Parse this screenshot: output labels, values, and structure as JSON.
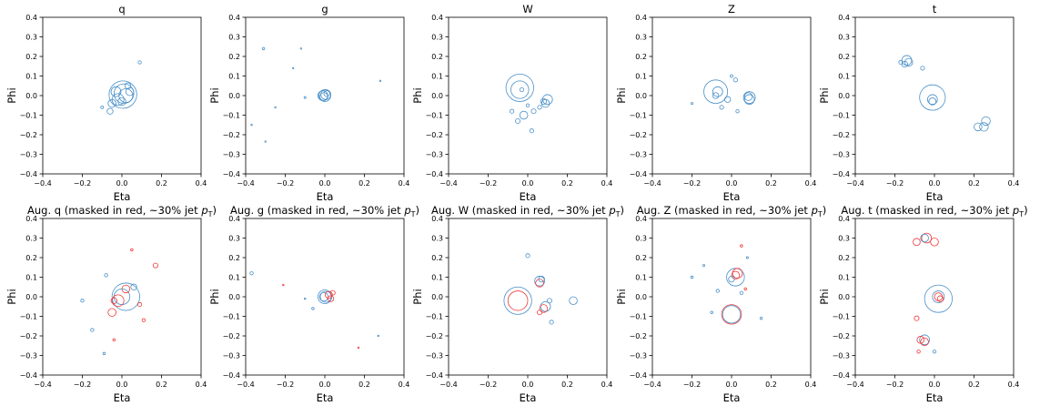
{
  "style": {
    "blue": "#4a90c8",
    "red": "#f03a3a"
  },
  "chart_data": [
    {
      "type": "scatter",
      "title": "q",
      "xlabel": "Eta",
      "ylabel": "Phi",
      "xlim": [
        -0.4,
        0.4
      ],
      "ylim": [
        -0.4,
        0.4
      ],
      "xticks": [
        "−0.4",
        "−0.2",
        "0.0",
        "0.2",
        "0.4"
      ],
      "yticks": [
        "0.4",
        "0.3",
        "0.2",
        "0.1",
        "0.0",
        "−0.1",
        "−0.2",
        "−0.3",
        "−0.4"
      ],
      "circles": [
        [
          0.005,
          0.005,
          0.07,
          "b"
        ],
        [
          0.01,
          0.01,
          0.05,
          "b"
        ],
        [
          0.02,
          0.0,
          0.035,
          "b"
        ],
        [
          -0.03,
          0.02,
          0.025,
          "b"
        ],
        [
          0.04,
          0.02,
          0.02,
          "b"
        ],
        [
          -0.05,
          -0.04,
          0.02,
          "b"
        ],
        [
          0.0,
          -0.03,
          0.02,
          "b"
        ],
        [
          -0.06,
          -0.08,
          0.015,
          "b"
        ],
        [
          0.09,
          0.17,
          0.008,
          "b"
        ],
        [
          -0.1,
          -0.06,
          0.007,
          "b"
        ],
        [
          0.03,
          0.05,
          0.015,
          "b"
        ],
        [
          -0.02,
          -0.02,
          0.03,
          "b"
        ]
      ]
    },
    {
      "type": "scatter",
      "title": "g",
      "xlabel": "Eta",
      "ylabel": "Phi",
      "xlim": [
        -0.4,
        0.4
      ],
      "ylim": [
        -0.4,
        0.4
      ],
      "xticks": [
        "−0.4",
        "−0.2",
        "0.0",
        "0.2",
        "0.4"
      ],
      "yticks": [
        "0.4",
        "0.3",
        "0.2",
        "0.1",
        "0.0",
        "−0.1",
        "−0.2",
        "−0.3",
        "−0.4"
      ],
      "circles": [
        [
          0.0,
          0.0,
          0.03,
          "b"
        ],
        [
          0.005,
          0.005,
          0.025,
          "b"
        ],
        [
          -0.005,
          -0.005,
          0.02,
          "b"
        ],
        [
          0.01,
          0.01,
          0.015,
          "b"
        ],
        [
          -0.01,
          0.0,
          0.025,
          "b"
        ],
        [
          -0.31,
          0.24,
          0.006,
          "b"
        ],
        [
          -0.3,
          -0.235,
          0.003,
          "b"
        ],
        [
          -0.12,
          0.24,
          0.002,
          "b"
        ],
        [
          -0.16,
          0.14,
          0.002,
          "b"
        ],
        [
          0.28,
          0.075,
          0.002,
          "b"
        ],
        [
          -0.37,
          -0.15,
          0.003,
          "b"
        ],
        [
          -0.25,
          -0.06,
          0.003,
          "b"
        ],
        [
          -0.1,
          -0.01,
          0.005,
          "b"
        ]
      ]
    },
    {
      "type": "scatter",
      "title": "W",
      "xlabel": "Eta",
      "ylabel": "Phi",
      "xlim": [
        -0.4,
        0.4
      ],
      "ylim": [
        -0.4,
        0.4
      ],
      "xticks": [
        "−0.4",
        "−0.2",
        "0.0",
        "0.2",
        "0.4"
      ],
      "yticks": [
        "0.4",
        "0.3",
        "0.2",
        "0.1",
        "0.0",
        "−0.1",
        "−0.2",
        "−0.3",
        "−0.4"
      ],
      "circles": [
        [
          -0.04,
          0.04,
          0.07,
          "b"
        ],
        [
          -0.04,
          0.03,
          0.045,
          "b"
        ],
        [
          0.1,
          -0.02,
          0.025,
          "b"
        ],
        [
          0.09,
          -0.04,
          0.02,
          "b"
        ],
        [
          0.08,
          -0.03,
          0.015,
          "b"
        ],
        [
          -0.02,
          -0.1,
          0.02,
          "b"
        ],
        [
          -0.05,
          -0.13,
          0.012,
          "b"
        ],
        [
          0.03,
          -0.08,
          0.012,
          "b"
        ],
        [
          0.02,
          -0.18,
          0.01,
          "b"
        ],
        [
          -0.08,
          -0.08,
          0.01,
          "b"
        ],
        [
          0.06,
          -0.06,
          0.01,
          "b"
        ],
        [
          -0.03,
          0.03,
          0.01,
          "b"
        ],
        [
          0.0,
          -0.05,
          0.008,
          "b"
        ]
      ]
    },
    {
      "type": "scatter",
      "title": "Z",
      "xlabel": "Eta",
      "ylabel": "Phi",
      "xlim": [
        -0.4,
        0.4
      ],
      "ylim": [
        -0.4,
        0.4
      ],
      "xticks": [
        "−0.4",
        "−0.2",
        "0.0",
        "0.2",
        "0.4"
      ],
      "yticks": [
        "0.4",
        "0.3",
        "0.2",
        "0.1",
        "0.0",
        "−0.1",
        "−0.2",
        "−0.3",
        "−0.4"
      ],
      "circles": [
        [
          -0.08,
          0.02,
          0.06,
          "b"
        ],
        [
          0.09,
          -0.01,
          0.03,
          "b"
        ],
        [
          0.09,
          -0.02,
          0.025,
          "b"
        ],
        [
          0.085,
          -0.005,
          0.02,
          "b"
        ],
        [
          -0.07,
          0.02,
          0.025,
          "b"
        ],
        [
          -0.08,
          0.0,
          0.015,
          "b"
        ],
        [
          -0.02,
          -0.02,
          0.015,
          "b"
        ],
        [
          0.02,
          0.08,
          0.01,
          "b"
        ],
        [
          -0.05,
          -0.06,
          0.01,
          "b"
        ],
        [
          0.03,
          -0.08,
          0.008,
          "b"
        ],
        [
          -0.2,
          -0.04,
          0.005,
          "b"
        ],
        [
          0.0,
          0.1,
          0.007,
          "b"
        ]
      ]
    },
    {
      "type": "scatter",
      "title": "t",
      "xlabel": "Eta",
      "ylabel": "Phi",
      "xlim": [
        -0.4,
        0.4
      ],
      "ylim": [
        -0.4,
        0.4
      ],
      "xticks": [
        "−0.4",
        "−0.2",
        "0.0",
        "0.2",
        "0.4"
      ],
      "yticks": [
        "0.4",
        "0.3",
        "0.2",
        "0.1",
        "0.0",
        "−0.1",
        "−0.2",
        "−0.3",
        "−0.4"
      ],
      "circles": [
        [
          -0.01,
          -0.01,
          0.065,
          "b"
        ],
        [
          -0.01,
          -0.02,
          0.025,
          "b"
        ],
        [
          -0.01,
          -0.03,
          0.018,
          "b"
        ],
        [
          -0.14,
          0.18,
          0.025,
          "b"
        ],
        [
          -0.13,
          0.17,
          0.02,
          "b"
        ],
        [
          -0.15,
          0.16,
          0.015,
          "b"
        ],
        [
          0.26,
          -0.13,
          0.022,
          "b"
        ],
        [
          0.25,
          -0.16,
          0.022,
          "b"
        ],
        [
          0.22,
          -0.16,
          0.02,
          "b"
        ],
        [
          -0.06,
          0.14,
          0.01,
          "b"
        ],
        [
          -0.17,
          0.17,
          0.01,
          "b"
        ]
      ]
    },
    {
      "type": "scatter",
      "title": "Aug. q (masked in red, ~30% jet ",
      "title_math": "p",
      "title_sub": "T",
      "title_end": ")",
      "xlabel": "Eta",
      "ylabel": "Phi",
      "xlim": [
        -0.4,
        0.4
      ],
      "ylim": [
        -0.4,
        0.4
      ],
      "xticks": [
        "−0.4",
        "−0.2",
        "0.0",
        "0.2",
        "0.4"
      ],
      "yticks": [
        "0.4",
        "0.3",
        "0.2",
        "0.1",
        "0.0",
        "−0.1",
        "−0.2",
        "−0.3",
        "−0.4"
      ],
      "circles": [
        [
          0.02,
          0.0,
          0.07,
          "b"
        ],
        [
          0.0,
          0.0,
          0.04,
          "b"
        ],
        [
          -0.02,
          -0.02,
          0.03,
          "r"
        ],
        [
          0.02,
          0.04,
          0.02,
          "r"
        ],
        [
          -0.05,
          -0.08,
          0.02,
          "r"
        ],
        [
          -0.04,
          -0.02,
          0.015,
          "r"
        ],
        [
          0.06,
          0.05,
          0.015,
          "b"
        ],
        [
          -0.08,
          0.11,
          0.008,
          "b"
        ],
        [
          0.17,
          0.16,
          0.012,
          "r"
        ],
        [
          0.05,
          0.24,
          0.006,
          "r"
        ],
        [
          0.11,
          -0.12,
          0.008,
          "r"
        ],
        [
          -0.15,
          -0.17,
          0.008,
          "b"
        ],
        [
          -0.2,
          -0.02,
          0.008,
          "b"
        ],
        [
          -0.04,
          -0.22,
          0.006,
          "r"
        ],
        [
          -0.09,
          -0.29,
          0.006,
          "b"
        ],
        [
          0.09,
          -0.04,
          0.01,
          "r"
        ]
      ]
    },
    {
      "type": "scatter",
      "title": "Aug. g (masked in red, ~30% jet ",
      "title_math": "p",
      "title_sub": "T",
      "title_end": ")",
      "xlabel": "Eta",
      "ylabel": "Phi",
      "xlim": [
        -0.4,
        0.4
      ],
      "ylim": [
        -0.4,
        0.4
      ],
      "xticks": [
        "−0.4",
        "−0.2",
        "0.0",
        "0.2",
        "0.4"
      ],
      "yticks": [
        "0.4",
        "0.3",
        "0.2",
        "0.1",
        "0.0",
        "−0.1",
        "−0.2",
        "−0.3",
        "−0.4"
      ],
      "circles": [
        [
          0.0,
          0.0,
          0.035,
          "b"
        ],
        [
          0.005,
          0.0,
          0.028,
          "b"
        ],
        [
          -0.005,
          0.0,
          0.022,
          "b"
        ],
        [
          0.02,
          0.01,
          0.018,
          "r"
        ],
        [
          0.03,
          -0.01,
          0.015,
          "r"
        ],
        [
          0.04,
          0.02,
          0.012,
          "r"
        ],
        [
          -0.37,
          0.12,
          0.008,
          "b"
        ],
        [
          -0.21,
          0.06,
          0.003,
          "r"
        ],
        [
          0.17,
          -0.26,
          0.002,
          "r"
        ],
        [
          0.27,
          -0.2,
          0.003,
          "b"
        ],
        [
          -0.06,
          -0.06,
          0.006,
          "b"
        ],
        [
          -0.1,
          -0.01,
          0.004,
          "b"
        ]
      ]
    },
    {
      "type": "scatter",
      "title": "Aug. W (masked in red, ~30% jet ",
      "title_math": "p",
      "title_sub": "T",
      "title_end": ")",
      "xlabel": "Eta",
      "ylabel": "Phi",
      "xlim": [
        -0.4,
        0.4
      ],
      "ylim": [
        -0.4,
        0.4
      ],
      "xticks": [
        "−0.4",
        "−0.2",
        "0.0",
        "0.2",
        "0.4"
      ],
      "yticks": [
        "0.4",
        "0.3",
        "0.2",
        "0.1",
        "0.0",
        "−0.1",
        "−0.2",
        "−0.3",
        "−0.4"
      ],
      "circles": [
        [
          -0.05,
          -0.02,
          0.07,
          "b"
        ],
        [
          -0.05,
          -0.02,
          0.05,
          "r"
        ],
        [
          0.06,
          0.08,
          0.025,
          "b"
        ],
        [
          0.06,
          0.07,
          0.02,
          "r"
        ],
        [
          0.07,
          0.09,
          0.015,
          "b"
        ],
        [
          0.09,
          -0.05,
          0.025,
          "b"
        ],
        [
          0.08,
          -0.06,
          0.02,
          "r"
        ],
        [
          0.06,
          -0.08,
          0.012,
          "r"
        ],
        [
          0.23,
          -0.02,
          0.02,
          "b"
        ],
        [
          0.12,
          -0.13,
          0.01,
          "b"
        ],
        [
          0.0,
          0.21,
          0.01,
          "b"
        ],
        [
          0.11,
          -0.02,
          0.012,
          "b"
        ]
      ]
    },
    {
      "type": "scatter",
      "title": "Aug. Z (masked in red, ~30% jet ",
      "title_math": "p",
      "title_sub": "T",
      "title_end": ")",
      "xlabel": "Eta",
      "ylabel": "Phi",
      "xlim": [
        -0.4,
        0.4
      ],
      "ylim": [
        -0.4,
        0.4
      ],
      "xticks": [
        "−0.4",
        "−0.2",
        "0.0",
        "0.2",
        "0.4"
      ],
      "yticks": [
        "0.4",
        "0.3",
        "0.2",
        "0.1",
        "0.0",
        "−0.1",
        "−0.2",
        "−0.3",
        "−0.4"
      ],
      "circles": [
        [
          0.0,
          -0.09,
          0.05,
          "r"
        ],
        [
          0.0,
          -0.09,
          0.045,
          "b"
        ],
        [
          0.02,
          0.1,
          0.045,
          "b"
        ],
        [
          0.03,
          0.12,
          0.025,
          "r"
        ],
        [
          0.02,
          0.11,
          0.02,
          "r"
        ],
        [
          0.0,
          0.09,
          0.015,
          "b"
        ],
        [
          -0.07,
          0.03,
          0.008,
          "b"
        ],
        [
          0.05,
          0.26,
          0.006,
          "r"
        ],
        [
          0.08,
          0.2,
          0.005,
          "b"
        ],
        [
          -0.14,
          0.16,
          0.005,
          "b"
        ],
        [
          -0.2,
          0.1,
          0.006,
          "b"
        ],
        [
          0.07,
          0.04,
          0.006,
          "r"
        ],
        [
          0.15,
          -0.11,
          0.006,
          "b"
        ],
        [
          -0.1,
          -0.08,
          0.006,
          "b"
        ],
        [
          0.05,
          0.02,
          0.008,
          "b"
        ]
      ]
    },
    {
      "type": "scatter",
      "title": "Aug. t (masked in red, ~30% jet ",
      "title_math": "p",
      "title_sub": "T",
      "title_end": ")",
      "xlabel": "Eta",
      "ylabel": "Phi",
      "xlim": [
        -0.4,
        0.4
      ],
      "ylim": [
        -0.4,
        0.4
      ],
      "xticks": [
        "−0.4",
        "−0.2",
        "0.0",
        "0.2",
        "0.4"
      ],
      "yticks": [
        "0.4",
        "0.3",
        "0.2",
        "0.1",
        "0.0",
        "−0.1",
        "−0.2",
        "−0.3",
        "−0.4"
      ],
      "circles": [
        [
          0.02,
          -0.01,
          0.07,
          "b"
        ],
        [
          0.02,
          0.0,
          0.03,
          "b"
        ],
        [
          0.02,
          0.0,
          0.02,
          "r"
        ],
        [
          0.03,
          -0.01,
          0.015,
          "r"
        ],
        [
          -0.04,
          0.3,
          0.025,
          "r"
        ],
        [
          -0.05,
          0.3,
          0.02,
          "b"
        ],
        [
          0.0,
          0.28,
          0.02,
          "r"
        ],
        [
          -0.09,
          0.28,
          0.018,
          "r"
        ],
        [
          -0.05,
          -0.22,
          0.025,
          "b"
        ],
        [
          -0.05,
          -0.23,
          0.02,
          "r"
        ],
        [
          -0.07,
          -0.22,
          0.018,
          "r"
        ],
        [
          -0.09,
          -0.11,
          0.012,
          "r"
        ],
        [
          -0.08,
          -0.28,
          0.008,
          "r"
        ],
        [
          0.0,
          -0.28,
          0.008,
          "b"
        ]
      ]
    }
  ]
}
